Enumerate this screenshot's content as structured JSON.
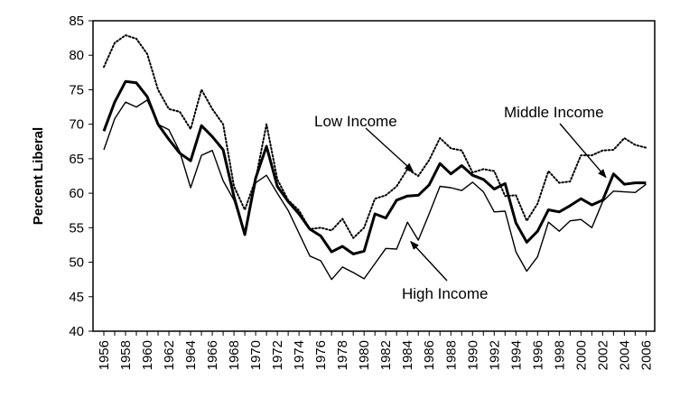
{
  "chart_data": {
    "type": "line",
    "title": "",
    "xlabel": "",
    "ylabel": "Percent Liberal",
    "ylim": [
      40,
      85
    ],
    "yticks": [
      40,
      45,
      50,
      55,
      60,
      65,
      70,
      75,
      80,
      85
    ],
    "xticks": [
      1956,
      1958,
      1960,
      1962,
      1964,
      1966,
      1968,
      1970,
      1972,
      1974,
      1976,
      1978,
      1980,
      1982,
      1984,
      1986,
      1988,
      1990,
      1992,
      1994,
      1996,
      1998,
      2000,
      2002,
      2004,
      2006
    ],
    "grid": false,
    "x": [
      1956,
      1957,
      1958,
      1959,
      1960,
      1961,
      1962,
      1963,
      1964,
      1965,
      1966,
      1967,
      1968,
      1969,
      1970,
      1971,
      1972,
      1973,
      1974,
      1975,
      1976,
      1977,
      1978,
      1979,
      1980,
      1981,
      1982,
      1983,
      1984,
      1985,
      1986,
      1987,
      1988,
      1989,
      1990,
      1991,
      1992,
      1993,
      1994,
      1995,
      1996,
      1997,
      1998,
      1999,
      2000,
      2001,
      2002,
      2003,
      2004,
      2005,
      2006
    ],
    "series": [
      {
        "name": "Low Income",
        "style": "dotted",
        "color": "#000000",
        "values": [
          78.3,
          81.8,
          82.9,
          82.4,
          80.2,
          75.0,
          72.2,
          71.8,
          69.3,
          75.0,
          72.2,
          70.0,
          61.0,
          57.6,
          62.0,
          70.0,
          62.0,
          59.0,
          57.5,
          54.8,
          55.0,
          54.6,
          56.3,
          53.5,
          55.0,
          59.2,
          59.7,
          61.0,
          63.5,
          62.5,
          64.8,
          68.0,
          66.5,
          66.2,
          63.0,
          63.5,
          63.2,
          59.6,
          59.7,
          56.0,
          58.5,
          63.2,
          61.5,
          61.7,
          65.5,
          65.5,
          66.2,
          66.3,
          68.0,
          67.0,
          66.6
        ]
      },
      {
        "name": "Middle Income",
        "style": "bold",
        "color": "#000000",
        "values": [
          69.0,
          73.2,
          76.2,
          76.0,
          74.0,
          70.0,
          67.8,
          65.8,
          64.7,
          69.8,
          68.2,
          66.3,
          59.5,
          54.0,
          62.2,
          66.8,
          61.0,
          58.8,
          57.0,
          54.8,
          53.8,
          51.5,
          52.3,
          51.2,
          51.6,
          57.0,
          56.4,
          59.0,
          59.6,
          59.7,
          61.2,
          64.3,
          62.8,
          64.0,
          62.6,
          62.0,
          60.6,
          61.4,
          55.7,
          52.9,
          54.5,
          57.6,
          57.3,
          58.2,
          59.2,
          58.3,
          59.0,
          62.8,
          61.3,
          61.5,
          61.5
        ]
      },
      {
        "name": "High Income",
        "style": "solid",
        "color": "#000000",
        "values": [
          66.3,
          70.8,
          73.2,
          72.5,
          73.5,
          70.0,
          69.2,
          66.0,
          60.8,
          65.5,
          66.2,
          61.8,
          59.0,
          54.0,
          61.5,
          62.6,
          60.0,
          57.5,
          54.2,
          50.9,
          50.2,
          47.5,
          49.3,
          48.5,
          47.6,
          49.8,
          52.0,
          51.9,
          55.8,
          53.2,
          57.0,
          61.0,
          60.8,
          60.4,
          61.6,
          60.2,
          57.3,
          57.4,
          51.5,
          48.7,
          50.8,
          55.8,
          54.5,
          56.0,
          56.2,
          55.0,
          58.8,
          60.3,
          60.2,
          60.1,
          61.3
        ]
      }
    ],
    "annotations": [
      {
        "text": "Low Income",
        "series": "Low Income",
        "point_to_x": 1984.5,
        "point_to_y": 63.2
      },
      {
        "text": "Middle Income",
        "series": "Middle Income",
        "point_to_x": 2002.3,
        "point_to_y": 62.3
      },
      {
        "text": "High Income",
        "series": "High Income",
        "point_to_x": 1984.3,
        "point_to_y": 53.0
      }
    ]
  }
}
